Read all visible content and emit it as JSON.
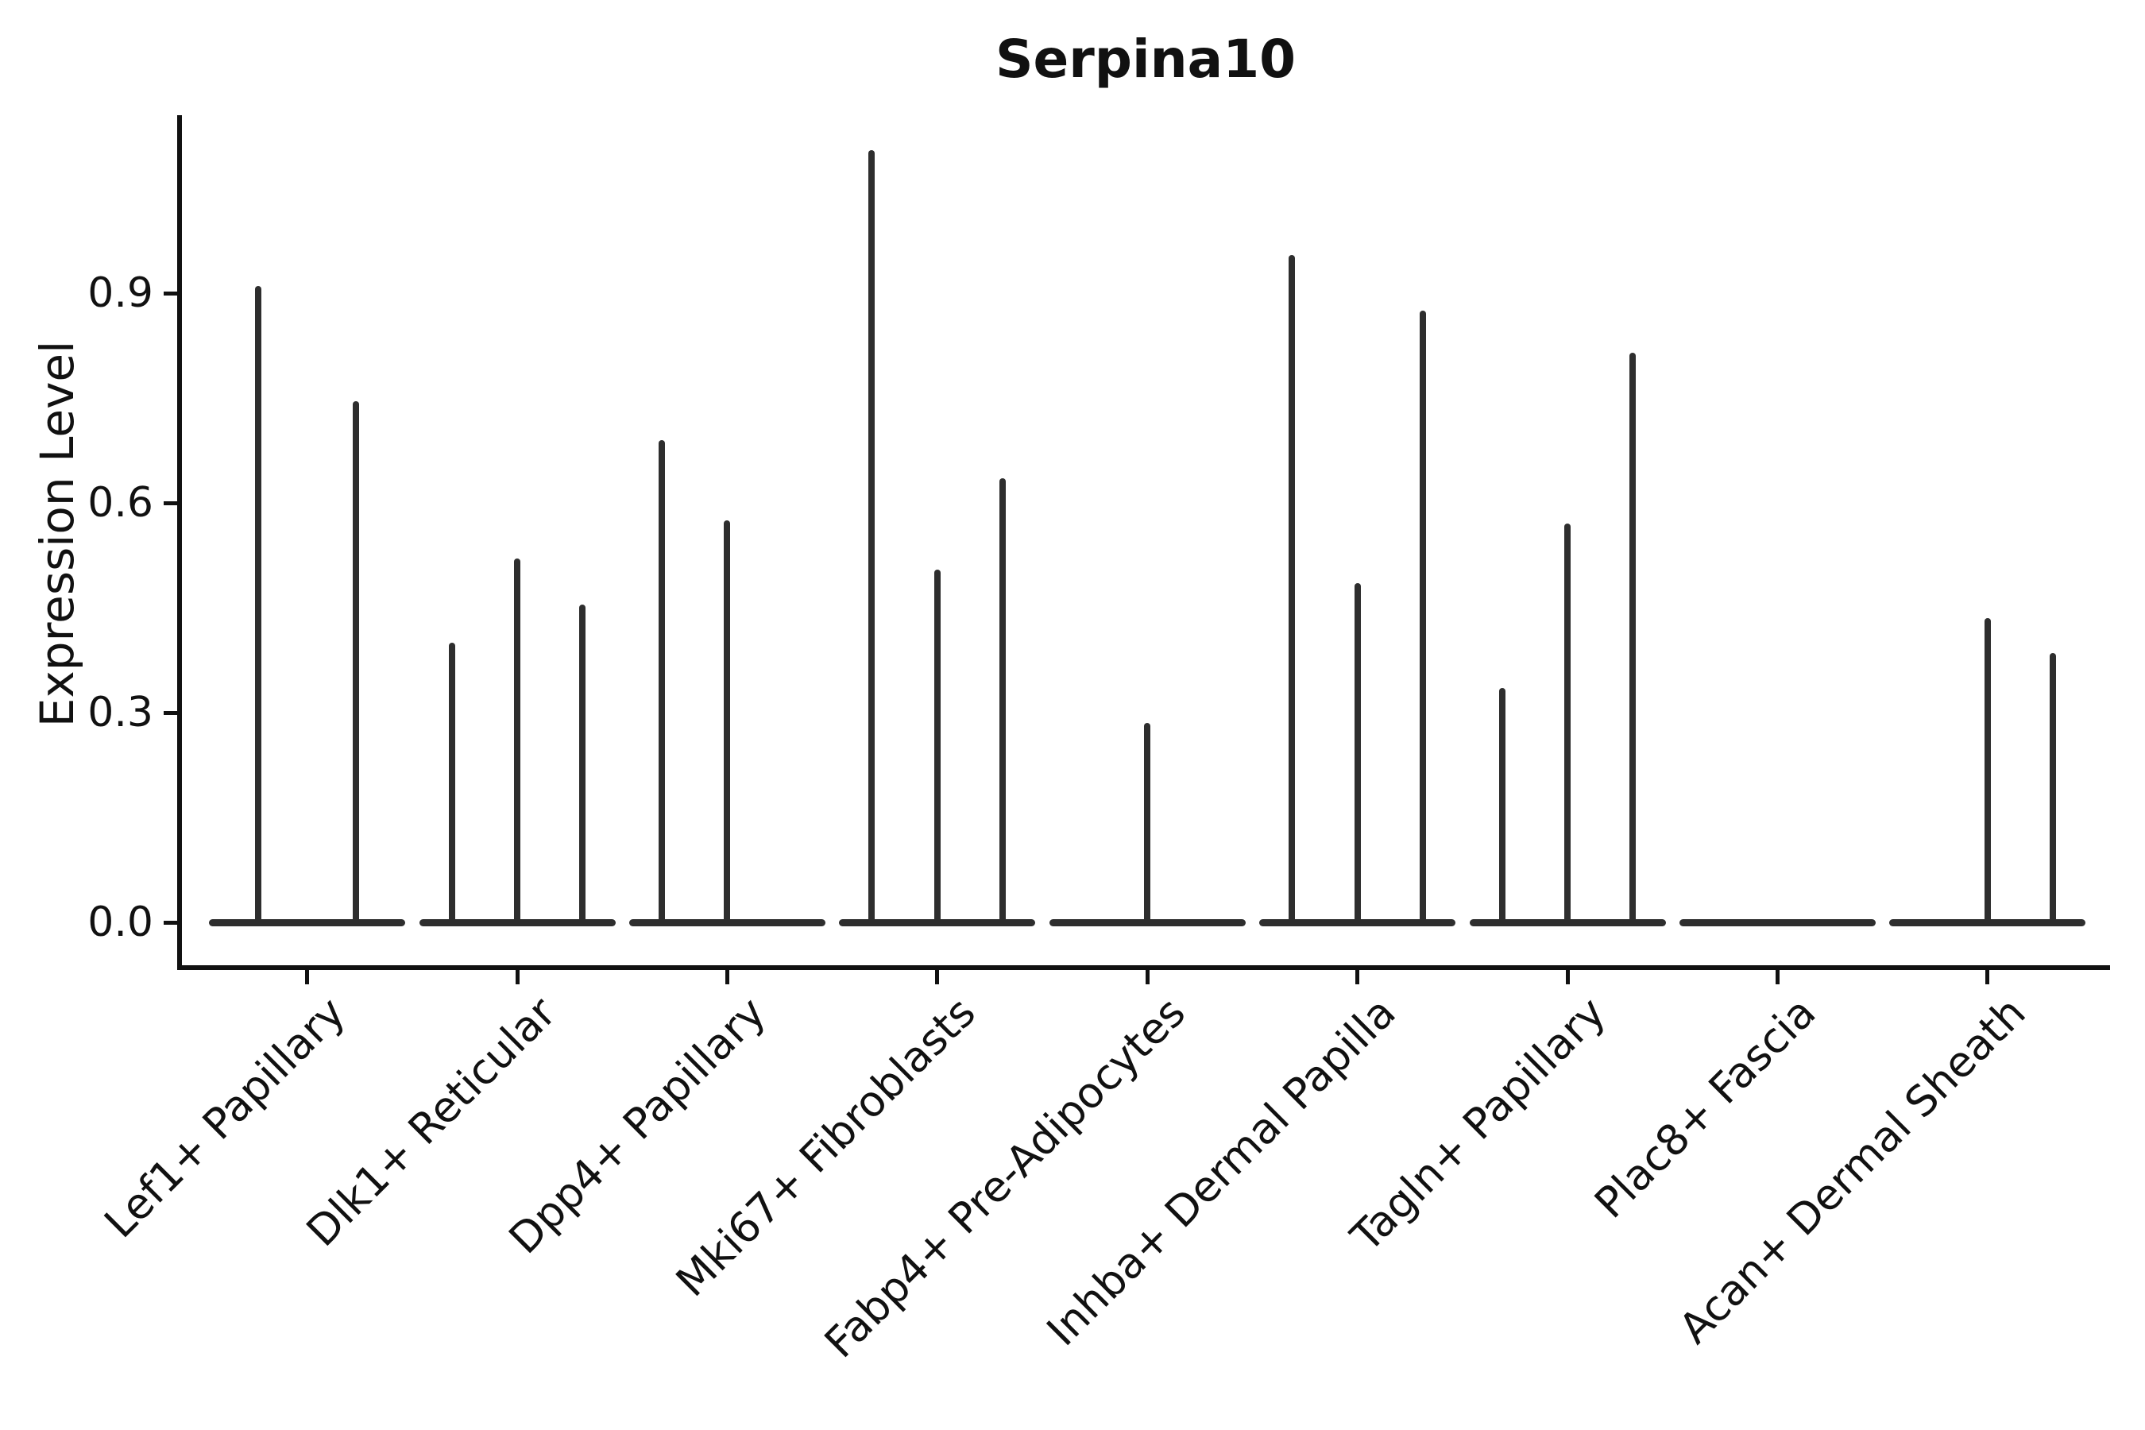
{
  "figure": {
    "background": "#ffffff",
    "ink_color": "#111111",
    "violin_color": "#2e2e2e"
  },
  "header": {
    "title": "Serpina10"
  },
  "axes": {
    "ylabel": "Expression Level",
    "ytick_labels": [
      "0.0",
      "0.3",
      "0.6",
      "0.9"
    ],
    "ytick_values": [
      0,
      0.3,
      0.6,
      0.9
    ]
  },
  "chart_data": {
    "type": "violin",
    "title": "Serpina10",
    "xlabel": "",
    "ylabel": "Expression Level",
    "ylim": [
      -0.06,
      1.16
    ],
    "yticks": [
      0.0,
      0.3,
      0.6,
      0.9
    ],
    "grid": false,
    "legend": false,
    "style_note": "needle-thin dark violins on a white background; each category shows a flat base at 0 with sparse spikes; only left and bottom spines drawn; x labels rotated 45 degrees",
    "categories": [
      "Lef1+ Papillary",
      "Dlk1+ Reticular",
      "Dpp4+ Papillary",
      "Mki67+ Fibroblasts",
      "Fabp4+ Pre-Adipocytes",
      "Inhba+ Dermal Papilla",
      "Tagln+ Papillary",
      "Plac8+ Fascia",
      "Acan+ Dermal Sheath"
    ],
    "groups": [
      {
        "label": "Lef1+ Papillary",
        "violin_peaks": [
          0.91,
          0.745
        ]
      },
      {
        "label": "Dlk1+ Reticular",
        "violin_peaks": [
          0.4,
          0.52,
          0.455
        ]
      },
      {
        "label": "Dpp4+ Papillary",
        "violin_peaks": [
          0.69,
          0.575,
          0
        ]
      },
      {
        "label": "Mki67+ Fibroblasts",
        "violin_peaks": [
          1.105,
          0.505,
          0.635
        ]
      },
      {
        "label": "Fabp4+ Pre-Adipocytes",
        "violin_peaks": [
          0,
          0.285,
          0
        ]
      },
      {
        "label": "Inhba+ Dermal Papilla",
        "violin_peaks": [
          0.955,
          0.485,
          0.875
        ]
      },
      {
        "label": "Tagln+ Papillary",
        "violin_peaks": [
          0.335,
          0.57,
          0.815
        ]
      },
      {
        "label": "Plac8+ Fascia",
        "violin_peaks": [
          0,
          0,
          0
        ]
      },
      {
        "label": "Acan+ Dermal Sheath",
        "violin_peaks": [
          0,
          0.435,
          0.385
        ]
      }
    ]
  }
}
